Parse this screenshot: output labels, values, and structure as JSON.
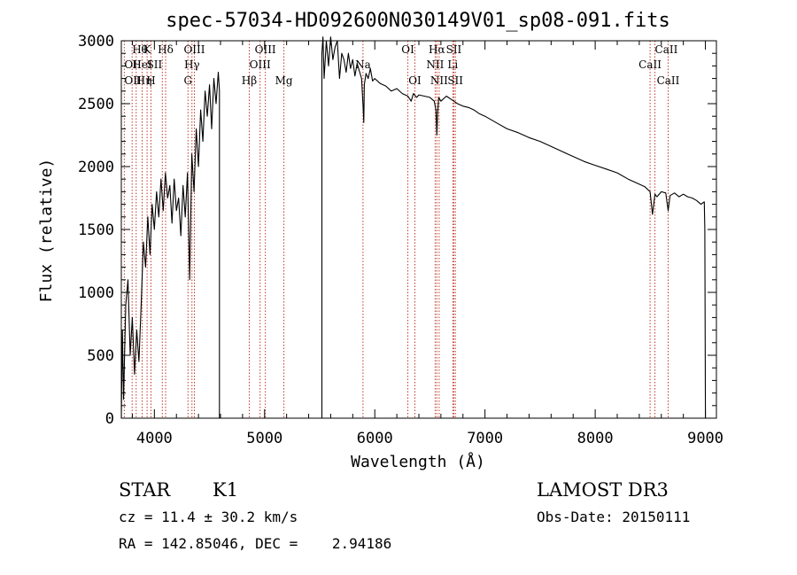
{
  "chart_data": {
    "type": "line",
    "title": "spec-57034-HD092600N030149V01_sp08-091.fits",
    "xlabel": "Wavelength (Å)",
    "ylabel": "Flux (relative)",
    "xlim": [
      3700,
      9100
    ],
    "ylim": [
      0,
      3000
    ],
    "xticks": [
      "4000",
      "5000",
      "6000",
      "7000",
      "8000",
      "9000"
    ],
    "xtick_values": [
      4000,
      5000,
      6000,
      7000,
      8000,
      9000
    ],
    "yticks": [
      "0",
      "500",
      "1000",
      "1500",
      "2000",
      "2500",
      "3000"
    ],
    "ytick_values": [
      0,
      500,
      1000,
      1500,
      2000,
      2500,
      3000
    ],
    "series": [
      {
        "name": "spectrum",
        "x": [
          3700,
          3710,
          3720,
          3740,
          3760,
          3780,
          3800,
          3820,
          3840,
          3860,
          3880,
          3900,
          3920,
          3940,
          3960,
          3980,
          4000,
          4020,
          4040,
          4060,
          4080,
          4100,
          4120,
          4140,
          4160,
          4180,
          4200,
          4220,
          4240,
          4260,
          4280,
          4300,
          4320,
          4340,
          4360,
          4380,
          4400,
          4420,
          4440,
          4460,
          4480,
          4500,
          4520,
          4540,
          4560,
          4580,
          4590,
          4590,
          5520,
          5520,
          5530,
          5540,
          5560,
          5580,
          5600,
          5620,
          5640,
          5660,
          5680,
          5700,
          5720,
          5740,
          5760,
          5780,
          5800,
          5820,
          5840,
          5860,
          5880,
          5895,
          5900,
          5905,
          5920,
          5940,
          5960,
          5980,
          6000,
          6050,
          6100,
          6150,
          6200,
          6250,
          6300,
          6330,
          6350,
          6380,
          6400,
          6450,
          6500,
          6540,
          6555,
          6563,
          6570,
          6580,
          6600,
          6650,
          6700,
          6750,
          6800,
          6850,
          6900,
          6950,
          7000,
          7100,
          7200,
          7300,
          7400,
          7500,
          7600,
          7700,
          7800,
          7900,
          8000,
          8100,
          8200,
          8300,
          8400,
          8450,
          8498,
          8520,
          8542,
          8560,
          8600,
          8640,
          8662,
          8680,
          8720,
          8760,
          8800,
          8840,
          8880,
          8920,
          8960,
          8990,
          8995,
          9000
        ],
        "y": [
          0,
          700,
          150,
          900,
          1100,
          500,
          800,
          350,
          700,
          450,
          900,
          1400,
          1200,
          1600,
          1300,
          1700,
          1500,
          1800,
          1600,
          1900,
          1650,
          1950,
          1750,
          1850,
          1550,
          1900,
          1650,
          1750,
          1450,
          1850,
          1600,
          1950,
          1100,
          2100,
          1800,
          2300,
          2000,
          2450,
          2200,
          2600,
          2400,
          2650,
          2300,
          2700,
          2500,
          2750,
          2600,
          0,
          0,
          2900,
          3050,
          2700,
          3000,
          2800,
          3080,
          2850,
          2950,
          3000,
          2700,
          2900,
          2850,
          2750,
          2900,
          2780,
          2850,
          2720,
          2820,
          2760,
          2700,
          2450,
          2350,
          2650,
          2740,
          2700,
          2780,
          2680,
          2700,
          2660,
          2640,
          2600,
          2620,
          2580,
          2560,
          2520,
          2580,
          2550,
          2570,
          2560,
          2550,
          2520,
          2450,
          2250,
          2420,
          2550,
          2520,
          2560,
          2530,
          2500,
          2480,
          2470,
          2450,
          2420,
          2400,
          2350,
          2300,
          2270,
          2230,
          2200,
          2160,
          2120,
          2080,
          2040,
          2010,
          1980,
          1950,
          1900,
          1860,
          1840,
          1800,
          1620,
          1780,
          1760,
          1800,
          1790,
          1650,
          1770,
          1790,
          1760,
          1780,
          1760,
          1750,
          1730,
          1700,
          1720,
          1500,
          0
        ]
      }
    ],
    "lines": [
      {
        "label": "Hθ",
        "x": 3798,
        "row": 0,
        "anchor": "start"
      },
      {
        "label": "OII",
        "x": 3727,
        "row": 1,
        "anchor": "start"
      },
      {
        "label": "OII",
        "x": 3727,
        "row": 2,
        "anchor": "start"
      },
      {
        "label": "Hη",
        "x": 3835,
        "row": 2,
        "anchor": "start"
      },
      {
        "label": "HeI",
        "x": 3889,
        "row": 1,
        "anchor": "middle"
      },
      {
        "label": "K",
        "x": 3934,
        "row": 0,
        "anchor": "middle"
      },
      {
        "label": "SII",
        "x": 4072,
        "row": 1,
        "anchor": "end"
      },
      {
        "label": "H",
        "x": 3969,
        "row": 2,
        "anchor": "middle"
      },
      {
        "label": "Hδ",
        "x": 4102,
        "row": 0,
        "anchor": "middle"
      },
      {
        "label": "OIII",
        "x": 4363,
        "row": 0,
        "anchor": "middle"
      },
      {
        "label": "Hγ",
        "x": 4341,
        "row": 1,
        "anchor": "middle"
      },
      {
        "label": "G",
        "x": 4305,
        "row": 2,
        "anchor": "middle"
      },
      {
        "label": "OIII",
        "x": 5007,
        "row": 0,
        "anchor": "middle"
      },
      {
        "label": "OIII",
        "x": 4959,
        "row": 1,
        "anchor": "middle"
      },
      {
        "label": "Hβ",
        "x": 4861,
        "row": 2,
        "anchor": "middle"
      },
      {
        "label": "Mg",
        "x": 5175,
        "row": 2,
        "anchor": "middle"
      },
      {
        "label": "Na",
        "x": 5893,
        "row": 1,
        "anchor": "middle"
      },
      {
        "label": "OI",
        "x": 6300,
        "row": 0,
        "anchor": "middle"
      },
      {
        "label": "OI",
        "x": 6364,
        "row": 2,
        "anchor": "middle"
      },
      {
        "label": "Hα",
        "x": 6563,
        "row": 0,
        "anchor": "middle"
      },
      {
        "label": "NII",
        "x": 6548,
        "row": 1,
        "anchor": "middle"
      },
      {
        "label": "NII",
        "x": 6584,
        "row": 2,
        "anchor": "middle"
      },
      {
        "label": "SII",
        "x": 6717,
        "row": 0,
        "anchor": "middle"
      },
      {
        "label": "Li",
        "x": 6708,
        "row": 1,
        "anchor": "middle"
      },
      {
        "label": "SII",
        "x": 6731,
        "row": 2,
        "anchor": "middle"
      },
      {
        "label": "CaII",
        "x": 8542,
        "row": 0,
        "anchor": "start"
      },
      {
        "label": "CaII",
        "x": 8498,
        "row": 1,
        "anchor": "middle"
      },
      {
        "label": "CaII",
        "x": 8662,
        "row": 2,
        "anchor": "middle"
      }
    ]
  },
  "info": {
    "class": "STAR",
    "subclass": "K1",
    "survey": "LAMOST DR3",
    "cz": "cz = 11.4 ± 30.2 km/s",
    "obs_date": "Obs-Date: 20150111",
    "coords": "RA = 142.85046, DEC =    2.94186"
  },
  "colors": {
    "line_marker": "#c0392b",
    "spectrum": "#000000"
  }
}
